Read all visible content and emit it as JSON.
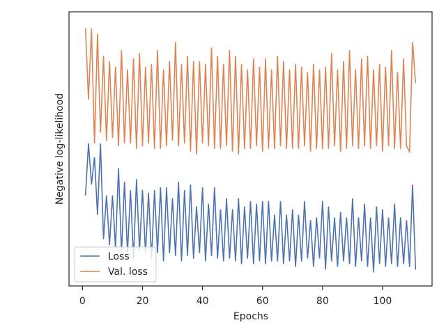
{
  "chart_data": {
    "type": "line",
    "xlabel": "Epochs",
    "ylabel": "Negative log-likelihood",
    "x": [
      1,
      2,
      3,
      4,
      5,
      6,
      7,
      8,
      9,
      10,
      11,
      12,
      13,
      14,
      15,
      16,
      17,
      18,
      19,
      20,
      21,
      22,
      23,
      24,
      25,
      26,
      27,
      28,
      29,
      30,
      31,
      32,
      33,
      34,
      35,
      36,
      37,
      38,
      39,
      40,
      41,
      42,
      43,
      44,
      45,
      46,
      47,
      48,
      49,
      50,
      51,
      52,
      53,
      54,
      55,
      56,
      57,
      58,
      59,
      60,
      61,
      62,
      63,
      64,
      65,
      66,
      67,
      68,
      69,
      70,
      71,
      72,
      73,
      74,
      75,
      76,
      77,
      78,
      79,
      80,
      81,
      82,
      83,
      84,
      85,
      86,
      87,
      88,
      89,
      90,
      91,
      92,
      93,
      94,
      95,
      96,
      97,
      98,
      99,
      100,
      101,
      102,
      103,
      104,
      105,
      106,
      107,
      108,
      109,
      110,
      111
    ],
    "series": [
      {
        "name": "Loss",
        "color": "#4c72b0",
        "values": [
          0.33,
          0.52,
          0.37,
          0.47,
          0.26,
          0.52,
          0.17,
          0.33,
          0.15,
          0.33,
          0.14,
          0.43,
          0.12,
          0.38,
          0.12,
          0.35,
          0.1,
          0.39,
          0.13,
          0.35,
          0.12,
          0.34,
          0.1,
          0.35,
          0.12,
          0.36,
          0.09,
          0.36,
          0.12,
          0.32,
          0.11,
          0.38,
          0.09,
          0.35,
          0.11,
          0.37,
          0.1,
          0.29,
          0.12,
          0.36,
          0.09,
          0.3,
          0.11,
          0.36,
          0.1,
          0.28,
          0.09,
          0.32,
          0.1,
          0.28,
          0.09,
          0.32,
          0.08,
          0.29,
          0.1,
          0.31,
          0.08,
          0.3,
          0.09,
          0.31,
          0.08,
          0.31,
          0.09,
          0.26,
          0.09,
          0.31,
          0.08,
          0.26,
          0.09,
          0.28,
          0.07,
          0.26,
          0.09,
          0.31,
          0.1,
          0.24,
          0.07,
          0.25,
          0.1,
          0.31,
          0.06,
          0.29,
          0.09,
          0.25,
          0.07,
          0.27,
          0.09,
          0.25,
          0.08,
          0.32,
          0.07,
          0.25,
          0.09,
          0.3,
          0.07,
          0.25,
          0.05,
          0.29,
          0.08,
          0.28,
          0.07,
          0.25,
          0.08,
          0.3,
          0.07,
          0.25,
          0.08,
          0.24,
          0.07,
          0.37,
          0.06
        ]
      },
      {
        "name": "Val. loss",
        "color": "#dd8452",
        "values": [
          0.94,
          0.68,
          0.94,
          0.52,
          0.92,
          0.56,
          0.84,
          0.53,
          0.82,
          0.54,
          0.8,
          0.51,
          0.86,
          0.52,
          0.79,
          0.52,
          0.83,
          0.5,
          0.85,
          0.51,
          0.8,
          0.52,
          0.81,
          0.5,
          0.86,
          0.5,
          0.79,
          0.51,
          0.82,
          0.53,
          0.89,
          0.51,
          0.81,
          0.52,
          0.84,
          0.49,
          0.82,
          0.48,
          0.82,
          0.52,
          0.81,
          0.51,
          0.87,
          0.5,
          0.84,
          0.5,
          0.81,
          0.51,
          0.86,
          0.49,
          0.84,
          0.48,
          0.81,
          0.5,
          0.79,
          0.5,
          0.83,
          0.51,
          0.8,
          0.49,
          0.83,
          0.5,
          0.79,
          0.5,
          0.84,
          0.51,
          0.82,
          0.5,
          0.79,
          0.5,
          0.81,
          0.5,
          0.8,
          0.51,
          0.78,
          0.49,
          0.81,
          0.5,
          0.79,
          0.5,
          0.8,
          0.5,
          0.85,
          0.51,
          0.79,
          0.49,
          0.82,
          0.5,
          0.86,
          0.51,
          0.79,
          0.5,
          0.83,
          0.51,
          0.84,
          0.5,
          0.79,
          0.51,
          0.81,
          0.49,
          0.8,
          0.51,
          0.86,
          0.5,
          0.78,
          0.5,
          0.83,
          0.51,
          0.49,
          0.89,
          0.74
        ]
      }
    ],
    "xlim": [
      -4.5,
      116.5
    ],
    "xticks": [
      0,
      20,
      40,
      60,
      80,
      100
    ],
    "ylim": [
      0,
      1
    ],
    "legend": "lower left"
  }
}
